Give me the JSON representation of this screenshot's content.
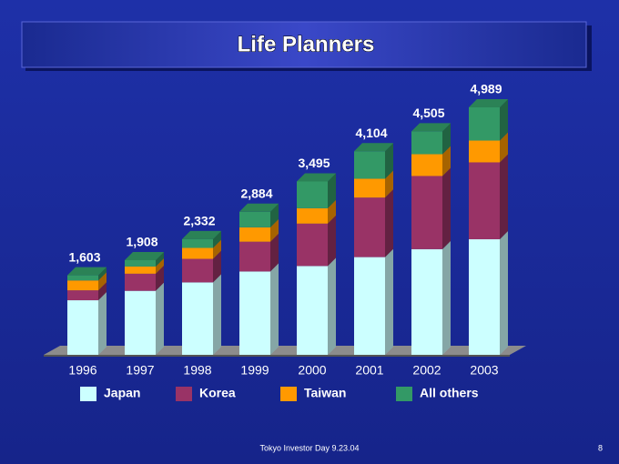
{
  "chart_data": {
    "type": "stacked-bar-3d",
    "title": "Life Planners",
    "categories": [
      "1996",
      "1997",
      "1998",
      "1999",
      "2000",
      "2001",
      "2002",
      "2003"
    ],
    "series": [
      {
        "name": "Japan",
        "color": "#ccffff",
        "values": [
          1100,
          1290,
          1460,
          1680,
          1790,
          1970,
          2130,
          2330
        ]
      },
      {
        "name": "Korea",
        "color": "#993366",
        "values": [
          200,
          345,
          475,
          600,
          855,
          1200,
          1475,
          1550
        ]
      },
      {
        "name": "Taiwan",
        "color": "#ff9900",
        "values": [
          200,
          145,
          220,
          290,
          310,
          380,
          440,
          440
        ]
      },
      {
        "name": "All others",
        "color": "#339966",
        "values": [
          103,
          128,
          177,
          314,
          540,
          554,
          460,
          669
        ]
      }
    ],
    "total_labels": [
      "1,603",
      "1,908",
      "2,332",
      "2,884",
      "3,495",
      "4,104",
      "4,505",
      "4,989"
    ],
    "footer": "Tokyo Investor Day 9.23.04",
    "page_number": "8"
  }
}
